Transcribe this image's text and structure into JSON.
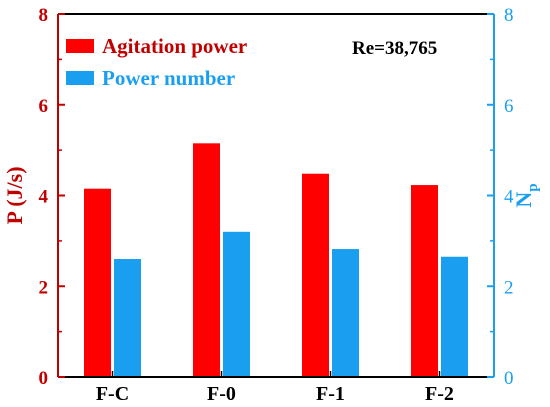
{
  "chart_data": {
    "type": "bar",
    "categories": [
      "F-C",
      "F-0",
      "F-1",
      "F-2"
    ],
    "series": [
      {
        "name": "Agitation power",
        "axis": "left",
        "color": "#ff0000",
        "values": [
          4.15,
          5.15,
          4.48,
          4.23
        ]
      },
      {
        "name": "Power number",
        "axis": "right",
        "color": "#1a9ff0",
        "values": [
          2.6,
          3.2,
          2.82,
          2.65
        ]
      }
    ],
    "ylabel": "P (J/s)",
    "y2label": {
      "main": "N",
      "sub": "p"
    },
    "ylim": [
      0,
      8
    ],
    "y2lim": [
      0,
      8
    ],
    "yticks": [
      "0",
      "2",
      "4",
      "6",
      "8"
    ],
    "y2ticks": [
      "0",
      "2",
      "4",
      "6",
      "8"
    ],
    "annotation": "Re=38,765",
    "legend_position": "top-left",
    "grid": false,
    "left_axis_color": "#c00000",
    "right_axis_color": "#1a9ff0"
  }
}
